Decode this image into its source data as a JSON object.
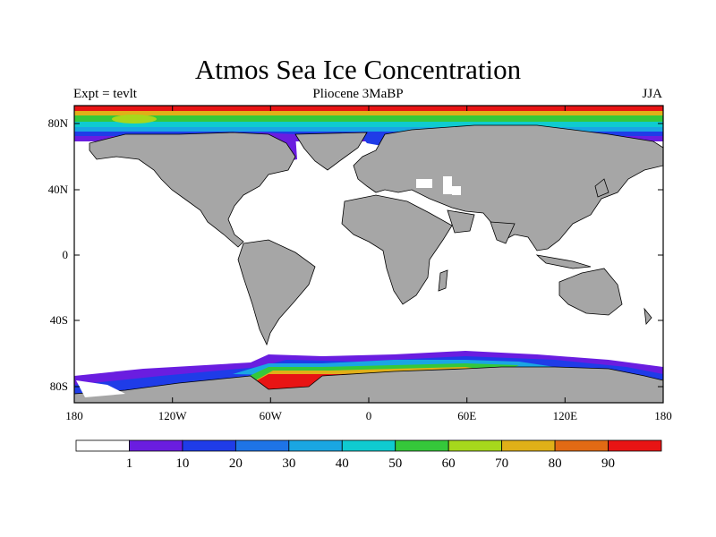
{
  "title": "Atmos Sea Ice Concentration",
  "subtitle_left": "Expt = tevlt",
  "subtitle_center": "Pliocene   3MaBP",
  "subtitle_right": "JJA",
  "y_ticks": [
    "80N",
    "40N",
    "0",
    "40S",
    "80S"
  ],
  "x_ticks": [
    "180",
    "120W",
    "60W",
    "0",
    "60E",
    "120E",
    "180"
  ],
  "colorbar": {
    "colors": [
      "#ffffff",
      "#6a1de0",
      "#1f3ce8",
      "#1e74e6",
      "#1aa6e2",
      "#0fcbd0",
      "#35c83a",
      "#a6d81c",
      "#e0b018",
      "#e26a14",
      "#e81414"
    ],
    "labels": [
      "1",
      "10",
      "20",
      "30",
      "40",
      "50",
      "60",
      "70",
      "80",
      "90"
    ]
  },
  "colors": {
    "land": "#a6a6a6",
    "ocean": "#ffffff",
    "frame": "#000000"
  }
}
